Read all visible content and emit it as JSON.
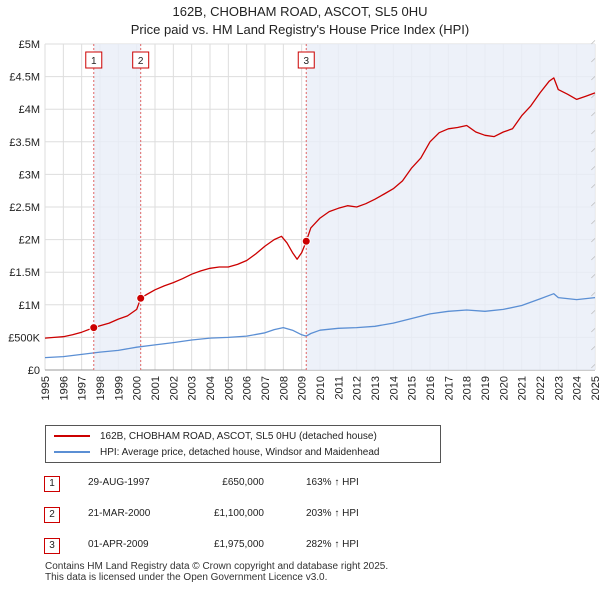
{
  "chart_data": {
    "type": "line",
    "title": "162B, CHOBHAM ROAD, ASCOT, SL5 0HU",
    "subtitle": "Price paid vs. HM Land Registry's House Price Index (HPI)",
    "xlabel": "",
    "ylabel": "",
    "xlim": [
      1995,
      2025
    ],
    "ylim": [
      0,
      5000000
    ],
    "grid": true,
    "y_ticks": [
      {
        "value": 0,
        "label": "£0"
      },
      {
        "value": 500000,
        "label": "£500K"
      },
      {
        "value": 1000000,
        "label": "£1M"
      },
      {
        "value": 1500000,
        "label": "£1.5M"
      },
      {
        "value": 2000000,
        "label": "£2M"
      },
      {
        "value": 2500000,
        "label": "£2.5M"
      },
      {
        "value": 3000000,
        "label": "£3M"
      },
      {
        "value": 3500000,
        "label": "£3.5M"
      },
      {
        "value": 4000000,
        "label": "£4M"
      },
      {
        "value": 4500000,
        "label": "£4.5M"
      },
      {
        "value": 5000000,
        "label": "£5M"
      }
    ],
    "x_ticks": [
      "1995",
      "1996",
      "1997",
      "1998",
      "1999",
      "2000",
      "2001",
      "2002",
      "2003",
      "2004",
      "2005",
      "2006",
      "2007",
      "2008",
      "2009",
      "2010",
      "2011",
      "2012",
      "2013",
      "2014",
      "2015",
      "2016",
      "2017",
      "2018",
      "2019",
      "2020",
      "2021",
      "2022",
      "2023",
      "2024",
      "2025"
    ],
    "series": [
      {
        "name": "162B, CHOBHAM ROAD, ASCOT, SL5 0HU (detached house)",
        "color": "#cc0000",
        "x": [
          1995.0,
          1995.5,
          1996.0,
          1996.5,
          1997.0,
          1997.66,
          1998.0,
          1998.5,
          1999.0,
          1999.5,
          2000.0,
          2000.22,
          2000.5,
          2001.0,
          2001.5,
          2002.0,
          2002.5,
          2003.0,
          2003.5,
          2004.0,
          2004.5,
          2005.0,
          2005.5,
          2006.0,
          2006.5,
          2007.0,
          2007.5,
          2007.9,
          2008.2,
          2008.5,
          2008.75,
          2009.0,
          2009.25,
          2009.5,
          2010.0,
          2010.5,
          2011.0,
          2011.5,
          2012.0,
          2012.5,
          2013.0,
          2013.5,
          2014.0,
          2014.5,
          2015.0,
          2015.5,
          2016.0,
          2016.5,
          2017.0,
          2017.5,
          2018.0,
          2018.5,
          2019.0,
          2019.5,
          2020.0,
          2020.5,
          2021.0,
          2021.5,
          2022.0,
          2022.5,
          2022.75,
          2023.0,
          2023.5,
          2024.0,
          2024.5,
          2025.0
        ],
        "values": [
          490000,
          500000,
          510000,
          540000,
          580000,
          650000,
          680000,
          720000,
          780000,
          830000,
          930000,
          1100000,
          1150000,
          1230000,
          1290000,
          1340000,
          1400000,
          1470000,
          1520000,
          1560000,
          1580000,
          1580000,
          1620000,
          1680000,
          1780000,
          1900000,
          2000000,
          2050000,
          1950000,
          1800000,
          1700000,
          1800000,
          1975000,
          2180000,
          2330000,
          2430000,
          2480000,
          2520000,
          2500000,
          2550000,
          2620000,
          2700000,
          2780000,
          2900000,
          3100000,
          3250000,
          3500000,
          3640000,
          3700000,
          3720000,
          3750000,
          3650000,
          3600000,
          3580000,
          3650000,
          3700000,
          3900000,
          4050000,
          4250000,
          4430000,
          4480000,
          4300000,
          4230000,
          4150000,
          4200000,
          4250000
        ]
      },
      {
        "name": "HPI: Average price, detached house, Windsor and Maidenhead",
        "color": "#5b8fd4",
        "x": [
          1995.0,
          1996.0,
          1997.0,
          1998.0,
          1999.0,
          2000.0,
          2001.0,
          2002.0,
          2003.0,
          2004.0,
          2005.0,
          2006.0,
          2007.0,
          2007.5,
          2008.0,
          2008.5,
          2009.0,
          2009.25,
          2009.5,
          2010.0,
          2011.0,
          2012.0,
          2013.0,
          2014.0,
          2015.0,
          2016.0,
          2017.0,
          2018.0,
          2019.0,
          2020.0,
          2021.0,
          2022.0,
          2022.75,
          2023.0,
          2024.0,
          2025.0
        ],
        "values": [
          190000,
          205000,
          240000,
          275000,
          300000,
          350000,
          385000,
          420000,
          460000,
          490000,
          500000,
          520000,
          570000,
          620000,
          650000,
          610000,
          540000,
          520000,
          560000,
          610000,
          640000,
          650000,
          670000,
          720000,
          790000,
          860000,
          900000,
          920000,
          900000,
          930000,
          990000,
          1090000,
          1170000,
          1110000,
          1080000,
          1110000
        ]
      }
    ],
    "annotations": [
      {
        "id": "1",
        "x": 1997.66,
        "y": 650000
      },
      {
        "id": "2",
        "x": 2000.22,
        "y": 1100000
      },
      {
        "id": "3",
        "x": 2009.25,
        "y": 1975000
      }
    ]
  },
  "legend": {
    "items": [
      {
        "label": "162B, CHOBHAM ROAD, ASCOT, SL5 0HU (detached house)",
        "color": "#cc0000"
      },
      {
        "label": "HPI: Average price, detached house, Windsor and Maidenhead",
        "color": "#5b8fd4"
      }
    ]
  },
  "transactions": [
    {
      "id": "1",
      "date": "29-AUG-1997",
      "price": "£650,000",
      "hpi": "163% ↑ HPI"
    },
    {
      "id": "2",
      "date": "21-MAR-2000",
      "price": "£1,100,000",
      "hpi": "203% ↑ HPI"
    },
    {
      "id": "3",
      "date": "01-APR-2009",
      "price": "£1,975,000",
      "hpi": "282% ↑ HPI"
    }
  ],
  "footer": {
    "line1": "Contains HM Land Registry data © Crown copyright and database right 2025.",
    "line2": "This data is licensed under the Open Government Licence v3.0."
  }
}
